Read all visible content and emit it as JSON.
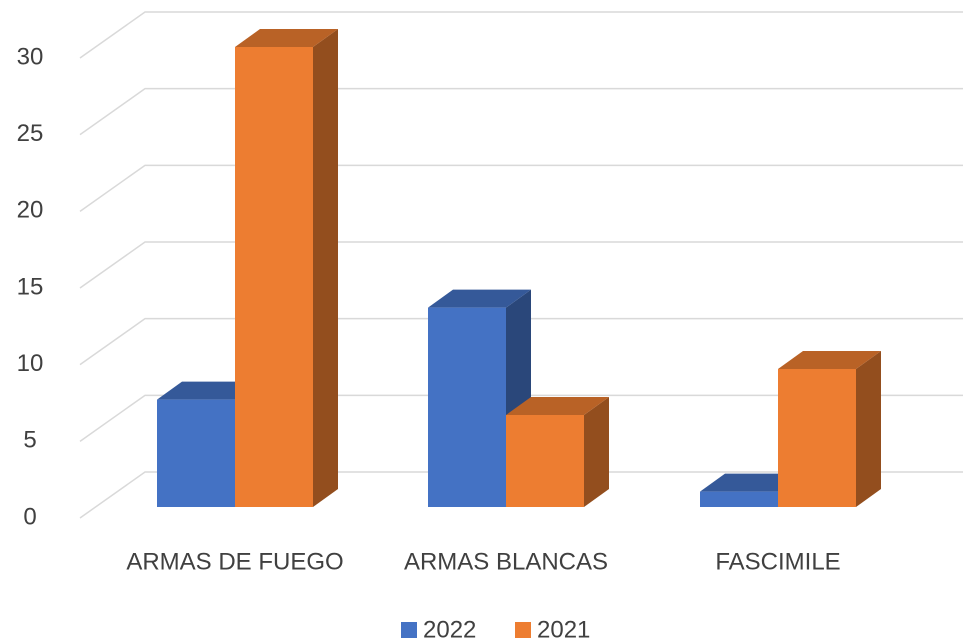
{
  "chart_data": {
    "type": "bar3d",
    "categories": [
      "ARMAS DE FUEGO",
      "ARMAS BLANCAS",
      "FASCIMILE"
    ],
    "series": [
      {
        "name": "2022",
        "color": "#4472c4",
        "values": [
          7,
          13,
          1
        ]
      },
      {
        "name": "2021",
        "color": "#ed7d31",
        "values": [
          30,
          6,
          9
        ]
      }
    ],
    "ylim": [
      0,
      30
    ],
    "yticks": [
      0,
      5,
      10,
      15,
      20,
      25,
      30
    ],
    "grid": true,
    "legend": "bottom"
  }
}
